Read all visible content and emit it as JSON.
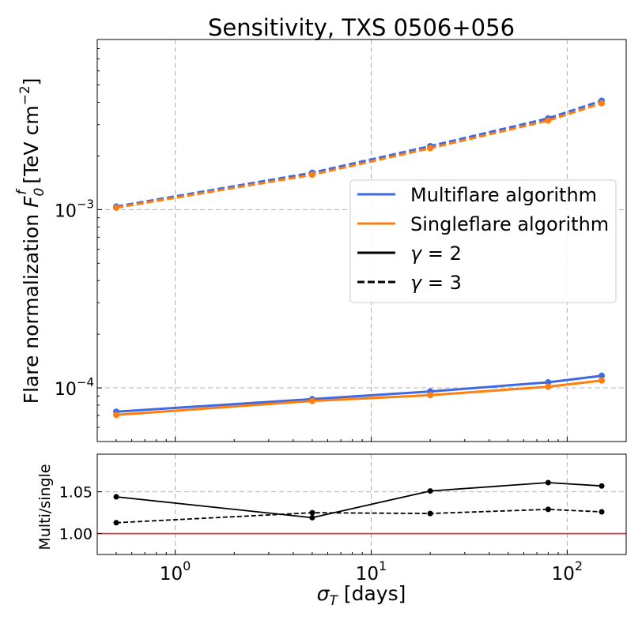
{
  "chart_data": [
    {
      "type": "line",
      "title": "Sensitivity, TXS 0506+056",
      "ylabel": {
        "prefix": "Flare normalization ",
        "symbol": "F",
        "sub": "0",
        "sup": "f",
        "units_pre": " [TeV cm",
        "units_exp": "−2",
        "units_post": "]"
      },
      "yscale": "log",
      "ylim": [
        5e-05,
        0.009
      ],
      "xscale": "log",
      "xlim": [
        0.4,
        200
      ],
      "x": [
        0.5,
        5,
        20,
        80,
        150
      ],
      "yticks": [
        {
          "value": 0.001,
          "base": "10",
          "exp": "−3"
        },
        {
          "value": 0.0001,
          "base": "10",
          "exp": "−4"
        }
      ],
      "series": [
        {
          "name": "Multiflare algorithm",
          "algorithm": "multi",
          "gamma": 2,
          "color": "#4169e1",
          "style": "solid",
          "values": [
            7.35e-05,
            8.65e-05,
            9.55e-05,
            0.0001075,
            0.000117
          ]
        },
        {
          "name": "Singleflare algorithm",
          "algorithm": "single",
          "gamma": 2,
          "color": "#ff7f0e",
          "style": "solid",
          "values": [
            7.05e-05,
            8.45e-05,
            9.1e-05,
            0.0001015,
            0.00011
          ]
        },
        {
          "name": "Multiflare algorithm",
          "algorithm": "multi",
          "gamma": 3,
          "color": "#4169e1",
          "style": "dashed",
          "values": [
            0.00104,
            0.00161,
            0.00227,
            0.00325,
            0.00408
          ]
        },
        {
          "name": "Singleflare algorithm",
          "algorithm": "single",
          "gamma": 3,
          "color": "#ff7f0e",
          "style": "dashed",
          "values": [
            0.001025,
            0.00157,
            0.00221,
            0.00316,
            0.00395
          ]
        }
      ],
      "legend": {
        "placement": "center-right",
        "entries": [
          {
            "label": "Multiflare algorithm",
            "color": "#4169e1",
            "style": "solid"
          },
          {
            "label": "Singleflare algorithm",
            "color": "#ff7f0e",
            "style": "solid"
          },
          {
            "label_sym": "γ",
            "label_rest": " = 2",
            "color": "#000000",
            "style": "solid"
          },
          {
            "label_sym": "γ",
            "label_rest": " = 3",
            "color": "#000000",
            "style": "dashed"
          }
        ]
      },
      "grid": true
    },
    {
      "type": "line",
      "ylabel": "Multi/single",
      "ylim": [
        0.975,
        1.095
      ],
      "yticks": [
        "1.00",
        "1.05"
      ],
      "ytick_values": [
        1.0,
        1.05
      ],
      "reference_line": {
        "value": 1.0,
        "color": "#e8272b"
      },
      "xscale": "log",
      "xlim": [
        0.4,
        200
      ],
      "x": [
        0.5,
        5,
        20,
        80,
        150
      ],
      "xlabel": {
        "symbol": "σ",
        "sub": "T",
        "rest": " [days]"
      },
      "xticks": [
        {
          "value": 1,
          "base": "10",
          "exp": "0"
        },
        {
          "value": 10,
          "base": "10",
          "exp": "1"
        },
        {
          "value": 100,
          "base": "10",
          "exp": "2"
        }
      ],
      "series": [
        {
          "name": "γ = 2",
          "color": "#000000",
          "style": "solid",
          "values": [
            1.044,
            1.019,
            1.051,
            1.061,
            1.057
          ]
        },
        {
          "name": "γ = 3",
          "color": "#000000",
          "style": "dashed",
          "values": [
            1.013,
            1.025,
            1.024,
            1.029,
            1.026
          ]
        }
      ],
      "grid": true
    }
  ]
}
